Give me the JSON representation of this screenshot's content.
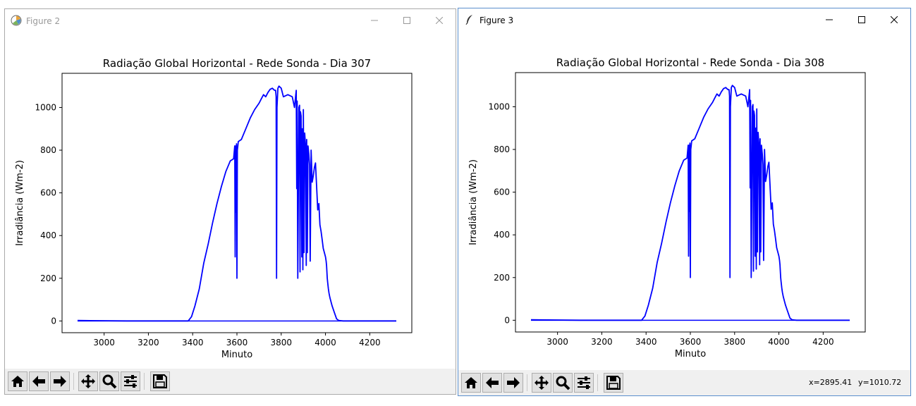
{
  "windows": [
    {
      "title": "Figure 2",
      "active": false,
      "chart_data": {
        "type": "line",
        "title": "Radiação Global Horizontal - Rede Sonda - Dia 307",
        "xlabel": "Minuto",
        "ylabel": "Irradiância (Wm-2)",
        "xlim": [
          2810,
          4390
        ],
        "ylim": [
          -55,
          1160
        ],
        "xticks": [
          3000,
          3200,
          3400,
          3600,
          3800,
          4000,
          4200
        ],
        "yticks": [
          0,
          200,
          400,
          600,
          800,
          1000
        ],
        "grid": false,
        "series": [
          {
            "color": "#0000ff",
            "x": [
              2880,
              3100,
              3380,
              3395,
              3410,
              3430,
              3450,
              3470,
              3490,
              3510,
              3530,
              3550,
              3570,
              3585,
              3590,
              3592,
              3594,
              3596,
              3598,
              3600,
              3602,
              3604,
              3606,
              3620,
              3640,
              3660,
              3680,
              3700,
              3710,
              3720,
              3730,
              3740,
              3750,
              3760,
              3770,
              3775,
              3777,
              3779,
              3781,
              3785,
              3790,
              3800,
              3810,
              3830,
              3850,
              3860,
              3868,
              3870,
              3872,
              3875,
              3880,
              3883,
              3885,
              3887,
              3890,
              3893,
              3896,
              3898,
              3900,
              3903,
              3906,
              3910,
              3913,
              3915,
              3918,
              3921,
              3925,
              3928,
              3931,
              3935,
              3940,
              3945,
              3950,
              3955,
              3960,
              3965,
              3970,
              3975,
              3980,
              3985,
              3990,
              3995,
              4000,
              4003,
              4005,
              4008,
              4010,
              4013,
              4016,
              4020,
              4025,
              4030,
              4040,
              4050,
              4060,
              4070,
              4080,
              4090,
              4100,
              4110,
              4120,
              4130,
              4140,
              4150,
              4320
            ],
            "values": [
              2,
              0,
              0,
              20,
              70,
              150,
              270,
              360,
              460,
              550,
              630,
              700,
              750,
              760,
              820,
              300,
              820,
              510,
              830,
              200,
              800,
              820,
              840,
              850,
              900,
              950,
              990,
              1020,
              1040,
              1060,
              1050,
              1070,
              1085,
              1090,
              1080,
              1080,
              1050,
              200,
              1000,
              1090,
              1100,
              1090,
              1050,
              1060,
              1050,
              1000,
              1080,
              620,
              1030,
              200,
              1000,
              1010,
              230,
              980,
              960,
              300,
              900,
              240,
              990,
              320,
              880,
              820,
              260,
              850,
              320,
              820,
              780,
              730,
              280,
              800,
              650,
              680,
              720,
              740,
              630,
              520,
              550,
              450,
              420,
              380,
              340,
              320,
              300,
              280,
              260,
              200,
              180,
              150,
              130,
              110,
              90,
              70,
              40,
              10,
              2,
              1,
              0,
              0,
              0,
              0,
              0,
              0,
              0,
              0,
              0
            ]
          }
        ]
      }
    },
    {
      "title": "Figure 3",
      "active": true,
      "coords": {
        "x": "x=2895.41",
        "y": "y=1010.72"
      },
      "chart_data": {
        "type": "line",
        "title": "Radiação Global Horizontal - Rede Sonda - Dia 308",
        "xlabel": "Minuto",
        "ylabel": "Irradiância (Wm-2)",
        "xlim": [
          2810,
          4390
        ],
        "ylim": [
          -55,
          1160
        ],
        "xticks": [
          3000,
          3200,
          3400,
          3600,
          3800,
          4000,
          4200
        ],
        "yticks": [
          0,
          200,
          400,
          600,
          800,
          1000
        ],
        "grid": false,
        "series": [
          {
            "color": "#0000ff",
            "x": [
              2880,
              3100,
              3380,
              3395,
              3410,
              3430,
              3450,
              3470,
              3490,
              3510,
              3530,
              3550,
              3570,
              3585,
              3590,
              3592,
              3594,
              3596,
              3598,
              3600,
              3602,
              3604,
              3606,
              3620,
              3640,
              3660,
              3680,
              3700,
              3710,
              3720,
              3730,
              3740,
              3750,
              3760,
              3770,
              3775,
              3777,
              3779,
              3781,
              3785,
              3790,
              3800,
              3810,
              3830,
              3850,
              3860,
              3868,
              3870,
              3872,
              3875,
              3880,
              3883,
              3885,
              3887,
              3890,
              3893,
              3896,
              3898,
              3900,
              3903,
              3906,
              3910,
              3913,
              3915,
              3918,
              3921,
              3925,
              3928,
              3931,
              3935,
              3940,
              3945,
              3950,
              3955,
              3960,
              3965,
              3970,
              3975,
              3980,
              3985,
              3990,
              3995,
              4000,
              4003,
              4005,
              4008,
              4010,
              4013,
              4016,
              4020,
              4025,
              4030,
              4040,
              4050,
              4060,
              4070,
              4080,
              4090,
              4100,
              4110,
              4120,
              4130,
              4140,
              4150,
              4320
            ],
            "values": [
              2,
              0,
              0,
              20,
              70,
              150,
              270,
              360,
              460,
              550,
              630,
              700,
              750,
              760,
              820,
              300,
              820,
              510,
              830,
              200,
              800,
              820,
              840,
              850,
              900,
              950,
              990,
              1020,
              1040,
              1060,
              1050,
              1070,
              1085,
              1090,
              1080,
              1080,
              1050,
              200,
              1000,
              1090,
              1100,
              1090,
              1050,
              1060,
              1050,
              1000,
              1080,
              620,
              1030,
              200,
              1000,
              1010,
              230,
              980,
              960,
              300,
              900,
              240,
              990,
              320,
              880,
              820,
              260,
              850,
              320,
              820,
              780,
              730,
              280,
              800,
              650,
              680,
              720,
              740,
              630,
              520,
              550,
              450,
              420,
              380,
              340,
              320,
              300,
              280,
              260,
              200,
              180,
              150,
              130,
              110,
              90,
              70,
              40,
              10,
              2,
              1,
              0,
              0,
              0,
              0,
              0,
              0,
              0,
              0,
              0
            ]
          }
        ]
      }
    }
  ],
  "toolbar_icons": [
    "home-icon",
    "back-arrow-icon",
    "forward-arrow-icon",
    "pan-icon",
    "zoom-icon",
    "configure-subplots-icon",
    "save-icon"
  ]
}
